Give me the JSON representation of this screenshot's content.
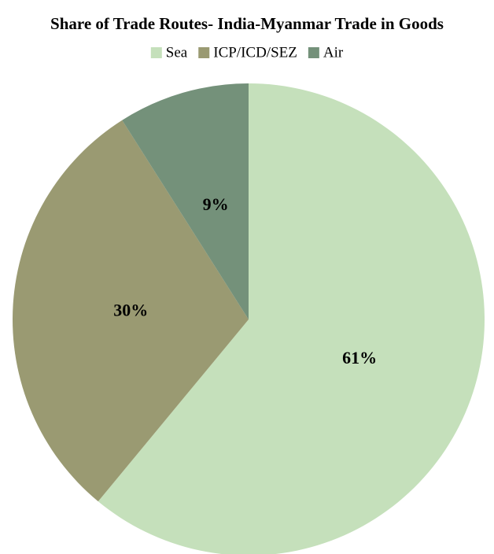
{
  "chart_data": {
    "type": "pie",
    "title": "Share of Trade Routes- India-Myanmar Trade in Goods",
    "categories": [
      "Sea",
      "ICP/ICD/SEZ",
      "Air"
    ],
    "values": [
      61,
      30,
      9
    ],
    "value_labels": [
      "61%",
      "30%",
      "9%"
    ],
    "colors": [
      "#c5e0bb",
      "#9a9a72",
      "#74917a"
    ],
    "legend": "top"
  }
}
